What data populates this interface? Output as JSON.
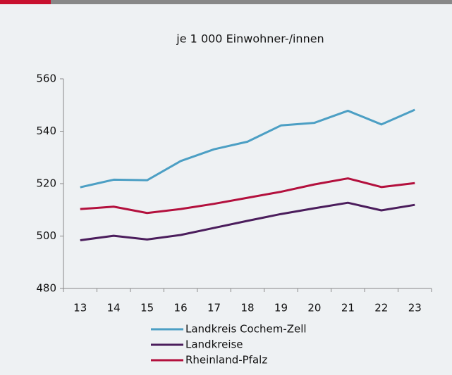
{
  "chart_data": {
    "type": "line",
    "title": "je 1 000 Einwohner-/innen",
    "categories": [
      "13",
      "14",
      "15",
      "16",
      "17",
      "18",
      "19",
      "20",
      "21",
      "22",
      "23"
    ],
    "series": [
      {
        "name": "Landkreis Cochem-Zell",
        "color": "#4c9fc4",
        "values": [
          518.6,
          521.5,
          521.3,
          528.6,
          533.1,
          536.0,
          542.2,
          543.2,
          547.8,
          542.6,
          548.2
        ]
      },
      {
        "name": "Landkreise",
        "color": "#4b1d5c",
        "values": [
          498.4,
          500.1,
          498.7,
          500.4,
          503.1,
          505.8,
          508.4,
          510.6,
          512.7,
          509.8,
          511.9
        ]
      },
      {
        "name": "Rheinland-Pfalz",
        "color": "#b3103d",
        "values": [
          510.3,
          511.2,
          508.8,
          510.3,
          512.3,
          514.6,
          516.9,
          519.7,
          522.0,
          518.7,
          520.2
        ]
      }
    ],
    "ylim": [
      480,
      560
    ],
    "yticks": [
      480,
      500,
      520,
      540,
      560
    ],
    "grid": false
  }
}
